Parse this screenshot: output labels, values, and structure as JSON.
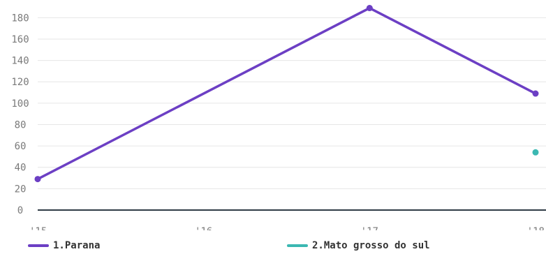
{
  "chart_data": {
    "type": "line",
    "x": [
      "'15",
      "'16",
      "'17",
      "'18"
    ],
    "y_ticks": [
      "0",
      "20",
      "40",
      "60",
      "80",
      "100",
      "120",
      "140",
      "160",
      "180"
    ],
    "ylim": [
      0,
      190
    ],
    "grid": true,
    "legend_placement": "bottom",
    "series": [
      {
        "name": "1.Parana",
        "color": "#6c3fc4",
        "values": [
          29,
          null,
          189,
          109
        ]
      },
      {
        "name": "2.Mato grosso do sul",
        "color": "#3bb8b2",
        "values": [
          null,
          null,
          null,
          54
        ]
      }
    ]
  }
}
